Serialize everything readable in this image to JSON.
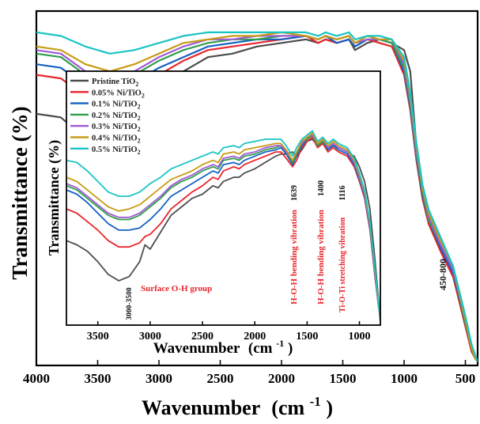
{
  "chart_data": [
    {
      "type": "line",
      "panel": "main",
      "xlabel": "Wavenumber",
      "xlabel_unit": "(cm",
      "xlabel_sup": "-1",
      "xlabel_close": ")",
      "ylabel": "Transmittance (%)",
      "xlim": [
        4000,
        400
      ],
      "x_reversed": true,
      "xticks": [
        "4000",
        "3500",
        "3000",
        "2500",
        "2000",
        "1500",
        "1000",
        "500"
      ],
      "annotations": [
        {
          "text": "450-800",
          "x": 620,
          "rotation": -90
        }
      ],
      "x": [
        4000,
        3800,
        3600,
        3400,
        3200,
        3000,
        2800,
        2600,
        2400,
        2200,
        2000,
        1800,
        1700,
        1640,
        1550,
        1450,
        1400,
        1300,
        1200,
        1100,
        1000,
        950,
        900,
        850,
        800,
        700,
        600,
        550,
        500,
        450,
        420,
        400
      ],
      "series": [
        {
          "name": "Pristine TiO2",
          "color": "#4d4d4d",
          "values": [
            71,
            70,
            64,
            62,
            66,
            76,
            83,
            87,
            88,
            90,
            91,
            92,
            91,
            92,
            91,
            92,
            89,
            91,
            92,
            91,
            89,
            83,
            62,
            48,
            40,
            33,
            26,
            19,
            12,
            4,
            2,
            1
          ]
        },
        {
          "name": "0.05% Ni/TiO2",
          "color": "#e8262c",
          "values": [
            82,
            81,
            76,
            74,
            77,
            82,
            86,
            89,
            90,
            91,
            92,
            93,
            91,
            92,
            91,
            92,
            90,
            92,
            91,
            90,
            82,
            72,
            58,
            47,
            40,
            32,
            25,
            18,
            11,
            4,
            2,
            1
          ]
        },
        {
          "name": "0.1% Ni/TiO2",
          "color": "#1561c2",
          "values": [
            85,
            84,
            79,
            77,
            80,
            84,
            87,
            90,
            91,
            92,
            92,
            93,
            92,
            93,
            91,
            92,
            90,
            92,
            92,
            91,
            83,
            73,
            59,
            48,
            41,
            33,
            26,
            19,
            12,
            5,
            2,
            1
          ]
        },
        {
          "name": "0.2% Ni/TiO2",
          "color": "#2f9e4b",
          "values": [
            88,
            87,
            82,
            80,
            82,
            86,
            89,
            91,
            92,
            92,
            93,
            93,
            92,
            93,
            92,
            93,
            91,
            92,
            92,
            91,
            84,
            74,
            60,
            49,
            41,
            34,
            27,
            20,
            12,
            5,
            2,
            1
          ]
        },
        {
          "name": "0.3% Ni/TiO2",
          "color": "#a05ad6",
          "values": [
            89,
            88,
            83,
            81,
            83,
            87,
            90,
            92,
            92,
            93,
            93,
            93,
            92,
            93,
            92,
            93,
            91,
            92,
            92,
            92,
            85,
            75,
            61,
            50,
            42,
            34,
            27,
            20,
            13,
            5,
            2,
            1
          ]
        },
        {
          "name": "0.4% Ni/TiO2",
          "color": "#c89b12",
          "values": [
            90,
            89,
            85,
            83,
            85,
            88,
            91,
            92,
            93,
            93,
            94,
            93,
            92,
            93,
            92,
            93,
            91,
            93,
            92,
            92,
            86,
            76,
            62,
            50,
            43,
            35,
            28,
            20,
            13,
            5,
            2,
            1
          ]
        },
        {
          "name": "0.5% Ni/TiO2",
          "color": "#19c4c4",
          "values": [
            94,
            93,
            90,
            88,
            89,
            91,
            93,
            94,
            94,
            94,
            94,
            94,
            93,
            94,
            93,
            94,
            92,
            93,
            93,
            92,
            87,
            77,
            63,
            51,
            44,
            36,
            28,
            21,
            14,
            6,
            3,
            1
          ]
        }
      ]
    },
    {
      "type": "line",
      "panel": "inset",
      "xlabel": "Wavenumber",
      "xlabel_unit": "(cm",
      "xlabel_sup": "-1",
      "xlabel_close": ")",
      "ylabel": "Transmittance (%)",
      "xlim": [
        3800,
        800
      ],
      "x_reversed": true,
      "xticks": [
        "3500",
        "3000",
        "2500",
        "2000",
        "1500",
        "1000"
      ],
      "legend": "top-left",
      "annotations": [
        {
          "text": "Surface O-H group",
          "color": "#e8262c",
          "rotation": 0
        },
        {
          "text": "3000-3500",
          "color": "#111111",
          "rotation": -90
        },
        {
          "text": "H-O-H bending vibration",
          "color": "#e8262c",
          "rotation": -90
        },
        {
          "text": "1639",
          "color": "#111111",
          "rotation": -90
        },
        {
          "text": "H-O-H bending vibration",
          "color": "#e8262c",
          "rotation": -90
        },
        {
          "text": "1400",
          "color": "#111111",
          "rotation": -90
        },
        {
          "text": "Ti-O-Ti stretching vibration",
          "color": "#e8262c",
          "rotation": -90
        },
        {
          "text": "1116",
          "color": "#111111",
          "rotation": -90
        }
      ],
      "x": [
        3800,
        3700,
        3600,
        3500,
        3400,
        3300,
        3200,
        3100,
        3050,
        3000,
        2900,
        2800,
        2700,
        2600,
        2500,
        2400,
        2350,
        2300,
        2200,
        2150,
        2100,
        2000,
        1900,
        1800,
        1750,
        1700,
        1639,
        1600,
        1550,
        1500,
        1450,
        1400,
        1350,
        1300,
        1250,
        1200,
        1116,
        1050,
        1000,
        950,
        900,
        850,
        800
      ],
      "series": [
        {
          "name": "Pristine TiO2",
          "color": "#4d4d4d",
          "values": [
            40,
            38,
            35,
            30,
            24,
            21,
            23,
            30,
            38,
            36,
            44,
            52,
            56,
            60,
            62,
            66,
            65,
            68,
            70,
            70,
            72,
            74,
            77,
            80,
            81,
            81,
            82,
            80,
            83,
            87,
            88,
            85,
            86,
            84,
            85,
            84,
            82,
            80,
            75,
            68,
            55,
            30,
            2
          ]
        },
        {
          "name": "0.05% Ni/TiO2",
          "color": "#e8262c",
          "values": [
            55,
            53,
            49,
            45,
            40,
            37,
            37,
            39,
            42,
            43,
            48,
            55,
            59,
            63,
            66,
            70,
            69,
            73,
            75,
            74,
            76,
            78,
            80,
            82,
            82,
            79,
            75,
            78,
            84,
            87,
            89,
            84,
            86,
            82,
            84,
            82,
            80,
            75,
            68,
            60,
            45,
            22,
            2
          ]
        },
        {
          "name": "0.1% Ni/TiO2",
          "color": "#1561c2",
          "values": [
            64,
            62,
            58,
            53,
            48,
            45,
            45,
            46,
            48,
            50,
            55,
            61,
            64,
            67,
            70,
            73,
            72,
            76,
            77,
            76,
            78,
            80,
            82,
            83,
            84,
            81,
            76,
            80,
            85,
            88,
            90,
            85,
            87,
            83,
            85,
            83,
            81,
            76,
            69,
            61,
            46,
            23,
            2
          ]
        },
        {
          "name": "0.2% Ni/TiO2",
          "color": "#2f9e4b",
          "values": [
            66,
            64,
            60,
            56,
            52,
            50,
            50,
            52,
            54,
            56,
            60,
            65,
            68,
            70,
            73,
            75,
            74,
            78,
            79,
            78,
            80,
            81,
            83,
            84,
            85,
            82,
            77,
            81,
            86,
            88,
            90,
            85,
            87,
            84,
            86,
            84,
            82,
            77,
            70,
            62,
            47,
            24,
            2
          ]
        },
        {
          "name": "0.3% Ni/TiO2",
          "color": "#a05ad6",
          "values": [
            67,
            65,
            61,
            57,
            53,
            51,
            51,
            53,
            55,
            57,
            61,
            66,
            69,
            71,
            74,
            76,
            75,
            79,
            80,
            79,
            81,
            82,
            84,
            85,
            85,
            82,
            78,
            82,
            86,
            89,
            90,
            86,
            88,
            84,
            86,
            84,
            82,
            77,
            70,
            62,
            47,
            24,
            2
          ]
        },
        {
          "name": "0.4% Ni/TiO2",
          "color": "#c89b12",
          "values": [
            70,
            68,
            64,
            60,
            56,
            54,
            55,
            57,
            59,
            61,
            65,
            69,
            71,
            73,
            76,
            78,
            77,
            81,
            82,
            81,
            83,
            84,
            85,
            86,
            86,
            83,
            78,
            82,
            87,
            89,
            91,
            86,
            88,
            85,
            87,
            85,
            83,
            78,
            71,
            63,
            48,
            25,
            2
          ]
        },
        {
          "name": "0.5% Ni/TiO2",
          "color": "#19c4c4",
          "values": [
            78,
            77,
            73,
            68,
            63,
            61,
            61,
            63,
            65,
            67,
            70,
            74,
            76,
            78,
            80,
            82,
            81,
            84,
            85,
            84,
            86,
            87,
            88,
            88,
            88,
            85,
            80,
            84,
            88,
            90,
            92,
            87,
            89,
            86,
            88,
            86,
            84,
            79,
            72,
            64,
            49,
            26,
            2
          ]
        }
      ]
    }
  ]
}
